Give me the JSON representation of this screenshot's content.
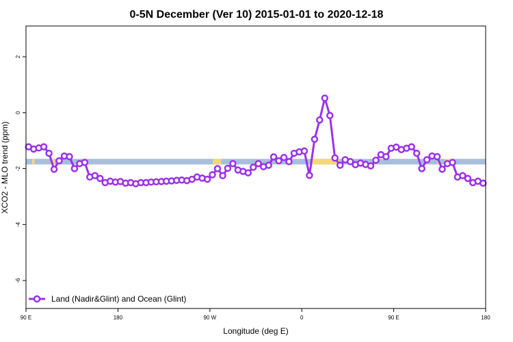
{
  "chart_data": {
    "type": "line",
    "title": "0-5N December (Ver 10)   2015-01-01 to 2020-12-18",
    "xlabel": "Longitude (deg E)",
    "ylabel": "XCO2 - MLO trend (ppm)",
    "xlim": [
      90,
      540
    ],
    "ylim": [
      -7,
      3.1
    ],
    "x_ticks": [
      {
        "value": 90,
        "label": "90 E"
      },
      {
        "value": 180,
        "label": "180"
      },
      {
        "value": 270,
        "label": "90 W"
      },
      {
        "value": 360,
        "label": "0"
      },
      {
        "value": 450,
        "label": "90 E"
      },
      {
        "value": 540,
        "label": "180"
      }
    ],
    "y_ticks": [
      {
        "value": 2,
        "label": "2"
      },
      {
        "value": 0,
        "label": "0"
      },
      {
        "value": -2,
        "label": "-2"
      },
      {
        "value": -4,
        "label": "-4"
      },
      {
        "value": -6,
        "label": "-6"
      }
    ],
    "grid": false,
    "legend_position": "bottom-left",
    "surface_band": {
      "y_range": [
        -1.85,
        -1.65
      ],
      "ocean_color": "#a8bfdc",
      "land_color": "#f5d77a",
      "land_segments": [
        [
          96,
          98.5
        ],
        [
          114,
          118
        ],
        [
          273,
          281
        ],
        [
          370,
          397
        ],
        [
          493,
          495
        ],
        [
          500,
          506
        ]
      ]
    },
    "series": [
      {
        "name": "Land (Nadir&Glint) and Ocean (Glint)",
        "color": "#9b30ea",
        "x": [
          92.5,
          97.5,
          102.5,
          107.5,
          112.5,
          117.5,
          122.5,
          127.5,
          132.5,
          137.5,
          142.5,
          147.5,
          152.5,
          157.5,
          162.5,
          167.5,
          172.5,
          177.5,
          182.5,
          187.5,
          192.5,
          197.5,
          202.5,
          207.5,
          212.5,
          217.5,
          222.5,
          227.5,
          232.5,
          237.5,
          242.5,
          247.5,
          252.5,
          257.5,
          262.5,
          267.5,
          272.5,
          277.5,
          282.5,
          287.5,
          292.5,
          297.5,
          302.5,
          307.5,
          312.5,
          317.5,
          322.5,
          327.5,
          332.5,
          337.5,
          342.5,
          347.5,
          352.5,
          357.5,
          362.5,
          367.5,
          372.5,
          377.5,
          382.5,
          387.5,
          392.5,
          397.5,
          402.5,
          407.5,
          412.5,
          417.5,
          422.5,
          427.5,
          432.5,
          437.5,
          442.5,
          447.5,
          452.5,
          457.5,
          462.5,
          467.5,
          472.5,
          477.5,
          482.5,
          487.5,
          492.5,
          497.5,
          502.5,
          507.5,
          512.5,
          517.5,
          522.5,
          527.5,
          532.5,
          537.5
        ],
        "values": [
          -1.22,
          -1.3,
          -1.26,
          -1.22,
          -1.45,
          -2.02,
          -1.72,
          -1.55,
          -1.57,
          -2.0,
          -1.82,
          -1.78,
          -2.3,
          -2.25,
          -2.35,
          -2.5,
          -2.45,
          -2.48,
          -2.46,
          -2.52,
          -2.5,
          -2.54,
          -2.5,
          -2.5,
          -2.48,
          -2.47,
          -2.46,
          -2.45,
          -2.44,
          -2.42,
          -2.41,
          -2.43,
          -2.38,
          -2.3,
          -2.34,
          -2.38,
          -2.22,
          -2.0,
          -2.25,
          -1.99,
          -1.82,
          -2.05,
          -2.1,
          -2.15,
          -1.95,
          -1.82,
          -1.93,
          -1.88,
          -1.58,
          -1.72,
          -1.6,
          -1.75,
          -1.45,
          -1.4,
          -1.37,
          -2.24,
          -0.95,
          -0.26,
          0.52,
          -0.1,
          -1.62,
          -1.88,
          -1.68,
          -1.75,
          -1.86,
          -1.8,
          -1.85,
          -1.9,
          -1.7,
          -1.5,
          -1.57,
          -1.27,
          -1.23,
          -1.32,
          -1.27,
          -1.22,
          -1.45,
          -2.0,
          -1.68,
          -1.55,
          -1.57,
          -2.02,
          -1.82,
          -1.78,
          -2.3,
          -2.25,
          -2.35,
          -2.5,
          -2.45,
          -2.52
        ]
      }
    ]
  }
}
